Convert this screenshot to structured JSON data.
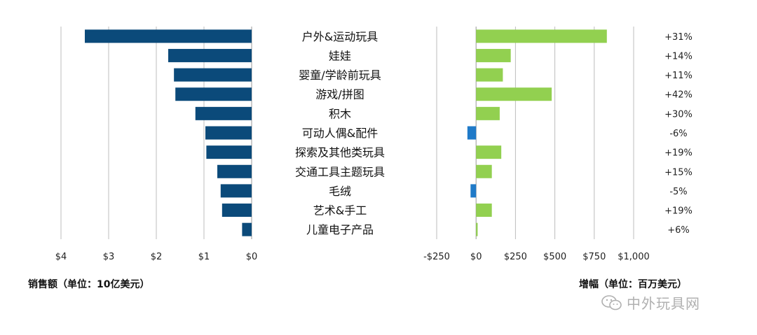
{
  "chart_data": {
    "type": "bar",
    "orientation": "horizontal",
    "categories": [
      "户外&运动玩具",
      "娃娃",
      "婴童/学龄前玩具",
      "游戏/拼图",
      "积木",
      "可动人偶&配件",
      "探索及其他类玩具",
      "交通工具主题玩具",
      "毛绒",
      "艺术&手工",
      "儿童电子产品"
    ],
    "colors": {
      "sales": "#0b4a7a",
      "growth_positive": "#92d050",
      "growth_negative": "#1f7ac8"
    },
    "grid": true,
    "sales": {
      "xlabel": "销售额（单位：10亿美元）",
      "direction": "right-to-left",
      "xlim": [
        0,
        4
      ],
      "ticks": [
        4,
        3,
        2,
        1,
        0
      ],
      "tick_labels": [
        "$4",
        "$3",
        "$2",
        "$1",
        "$0"
      ],
      "values": [
        3.5,
        1.75,
        1.63,
        1.6,
        1.18,
        0.97,
        0.95,
        0.72,
        0.65,
        0.62,
        0.2
      ]
    },
    "growth": {
      "xlabel": "增幅（单位：百万美元）",
      "xlim": [
        -250,
        1000
      ],
      "ticks": [
        -250,
        0,
        250,
        500,
        750,
        1000
      ],
      "tick_labels": [
        "-$250",
        "$0",
        "$250",
        "$500",
        "$750",
        "$1,000"
      ],
      "values": [
        830,
        220,
        170,
        480,
        150,
        -55,
        160,
        100,
        -35,
        100,
        10
      ],
      "percent_labels": [
        "+31%",
        "+14%",
        "+11%",
        "+42%",
        "+30%",
        "-6%",
        "+19%",
        "+15%",
        "-5%",
        "+19%",
        "+6%"
      ]
    }
  },
  "watermark": {
    "text": "中外玩具网",
    "icon": "wechat-icon"
  }
}
